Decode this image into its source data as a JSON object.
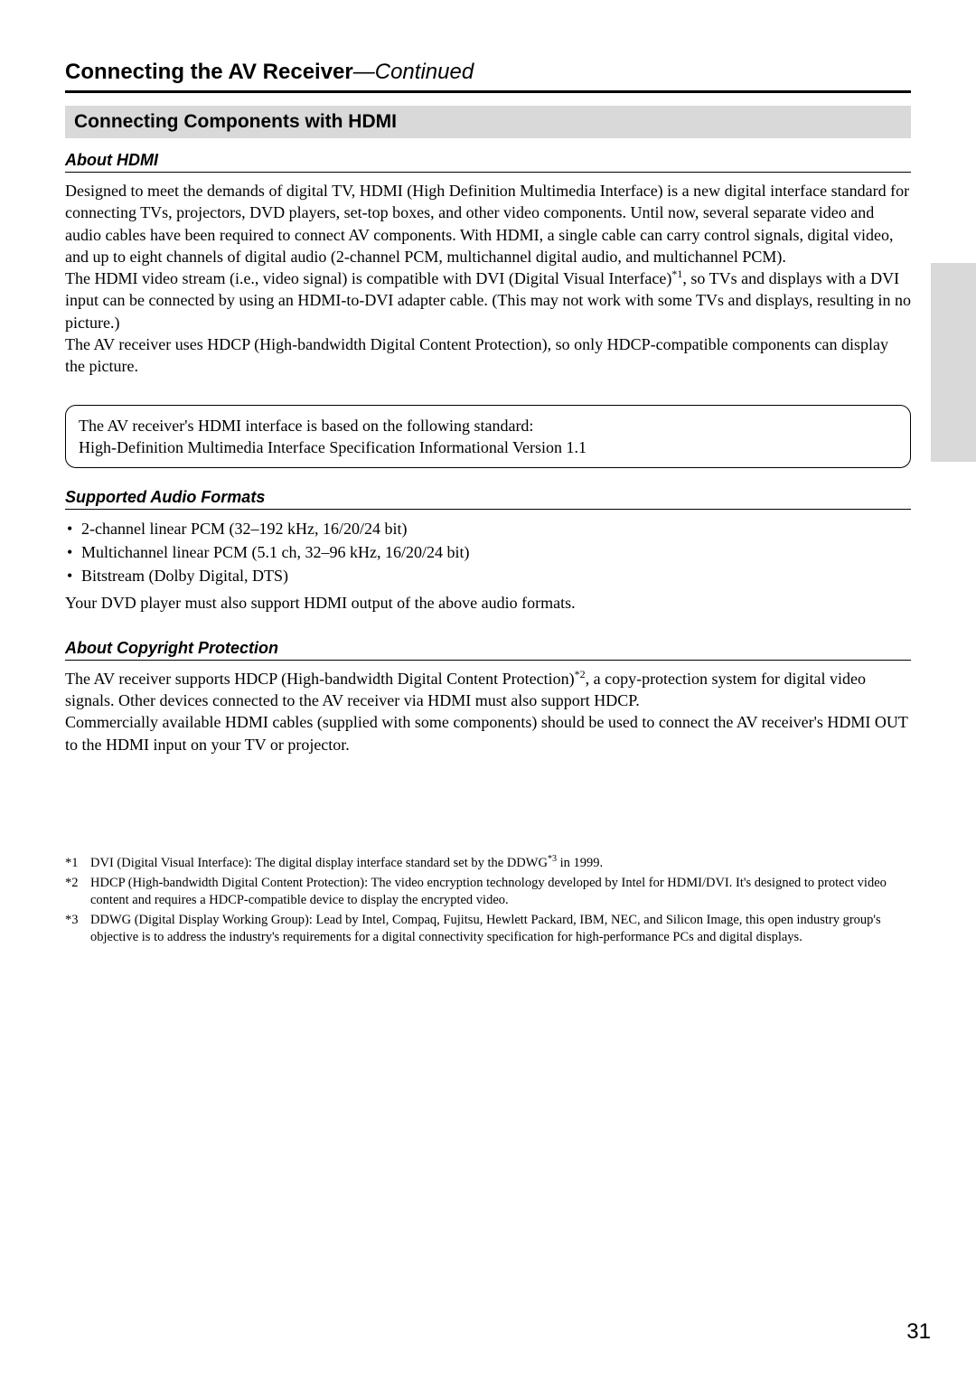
{
  "page": {
    "title_main": "Connecting the AV Receiver",
    "title_sep": "—",
    "title_cont": "Continued",
    "section_bar": "Connecting Components with HDMI",
    "page_number": "31"
  },
  "about_hdmi": {
    "heading": "About HDMI",
    "p1": "Designed to meet the demands of digital TV, HDMI (High Definition Multimedia Interface) is a new digital interface standard for connecting TVs, projectors, DVD players, set-top boxes, and other video components. Until now, several separate video and audio cables have been required to connect AV components. With HDMI, a single cable can carry control signals, digital video, and up to eight channels of digital audio (2-channel PCM, multichannel digital audio, and multichannel PCM).",
    "p2a": "The HDMI video stream (i.e., video signal) is compatible with DVI (Digital Visual Interface)",
    "p2_sup": "*1",
    "p2b": ", so TVs and displays with a DVI input can be connected by using an HDMI-to-DVI adapter cable. (This may not work with some TVs and displays, resulting in no picture.)",
    "p3": "The AV receiver uses HDCP (High-bandwidth Digital Content Protection), so only HDCP-compatible components can display the picture."
  },
  "standard_box": {
    "line1": "The AV receiver's HDMI interface is based on the following standard:",
    "line2": "High-Definition Multimedia Interface Specification Informational Version 1.1"
  },
  "audio_formats": {
    "heading": "Supported Audio Formats",
    "items": [
      "2-channel linear PCM (32–192 kHz, 16/20/24 bit)",
      "Multichannel linear PCM (5.1 ch, 32–96 kHz, 16/20/24 bit)",
      "Bitstream (Dolby Digital, DTS)"
    ],
    "note": "Your DVD player must also support HDMI output of the above audio formats."
  },
  "copyright": {
    "heading": "About Copyright Protection",
    "p1a": "The AV receiver supports HDCP (High-bandwidth Digital Content Protection)",
    "p1_sup": "*2",
    "p1b": ", a copy-protection system for digital video signals. Other devices connected to the AV receiver via HDMI must also support HDCP.",
    "p2": "Commercially available HDMI cables (supplied with some components) should be used to connect the AV receiver's HDMI OUT to the HDMI input on your TV or projector."
  },
  "footnotes": {
    "f1_marker": "*1",
    "f1a": "DVI (Digital Visual Interface): The digital display interface standard set by the DDWG",
    "f1_sup": "*3",
    "f1b": " in 1999.",
    "f2_marker": "*2",
    "f2": "HDCP (High-bandwidth Digital Content Protection): The video encryption technology developed by Intel for HDMI/DVI. It's designed to protect video content and requires a HDCP-compatible device to display the encrypted video.",
    "f3_marker": "*3",
    "f3": "DDWG (Digital Display Working Group): Lead by Intel, Compaq, Fujitsu, Hewlett Packard, IBM, NEC, and Silicon Image, this open industry group's objective is to address the industry's requirements for a digital connectivity specification for high-performance PCs and digital displays."
  }
}
